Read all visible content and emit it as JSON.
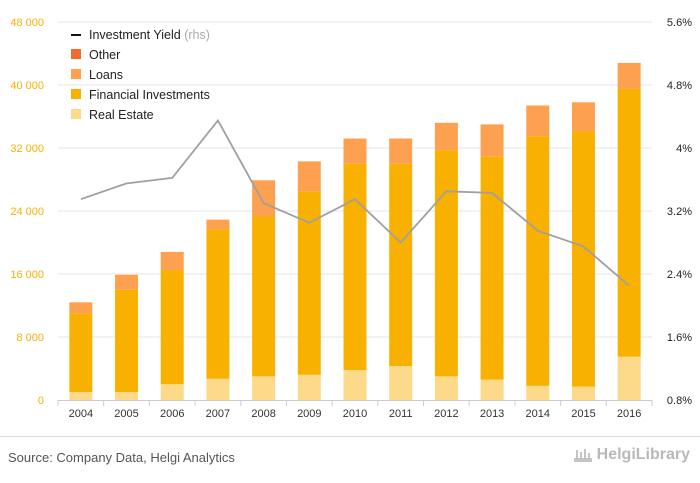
{
  "chart_data": {
    "type": "bar",
    "stacked": true,
    "categories": [
      "2004",
      "2005",
      "2006",
      "2007",
      "2008",
      "2009",
      "2010",
      "2011",
      "2012",
      "2013",
      "2014",
      "2015",
      "2016"
    ],
    "series": [
      {
        "name": "Real Estate",
        "color": "#FDD98A",
        "values": [
          1000,
          1000,
          2000,
          2700,
          3000,
          3200,
          3800,
          4300,
          3000,
          2600,
          1800,
          1700,
          5500
        ]
      },
      {
        "name": "Financial Investments",
        "color": "#F8B100",
        "values": [
          10000,
          13000,
          14500,
          19000,
          20300,
          23300,
          26200,
          25700,
          28700,
          28300,
          31700,
          32400,
          34000
        ]
      },
      {
        "name": "Loans",
        "color": "#FDA04F",
        "values": [
          1400,
          1900,
          2300,
          1200,
          4600,
          3800,
          3200,
          3200,
          3500,
          4100,
          3900,
          3700,
          3300
        ]
      },
      {
        "name": "Other",
        "color": "#F36B2E",
        "values": [
          0,
          0,
          0,
          0,
          0,
          0,
          0,
          0,
          0,
          0,
          0,
          0,
          0
        ]
      }
    ],
    "line_series": {
      "name": "Investment Yield",
      "suffix": "(rhs)",
      "color": "#A0A0A0",
      "values": [
        3.35,
        3.55,
        3.62,
        4.35,
        3.3,
        3.05,
        3.35,
        2.8,
        3.45,
        3.43,
        2.95,
        2.75,
        2.25
      ]
    },
    "ylim": [
      0,
      48000
    ],
    "y_ticks": [
      "0",
      "8 000",
      "16 000",
      "24 000",
      "32 000",
      "40 000",
      "48 000"
    ],
    "y2lim": [
      0.8,
      5.6
    ],
    "y2_ticks": [
      "0.8%",
      "1.6%",
      "2.4%",
      "3.2%",
      "4%",
      "4.8%",
      "5.6%"
    ],
    "grid": true,
    "legend_position": "top-left"
  },
  "footer": {
    "source": "Source: Company Data, Helgi Analytics",
    "logo": "HelgiLibrary"
  }
}
